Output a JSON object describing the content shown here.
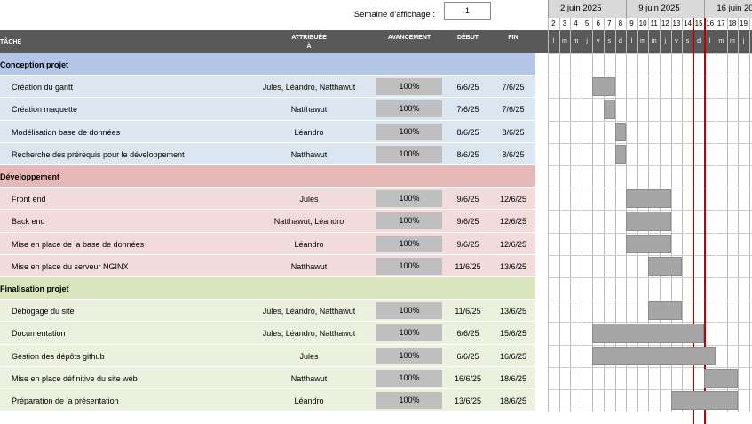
{
  "header": {
    "week_label": "Semaine d’affichage :",
    "week_value": "1"
  },
  "timeline": {
    "weeks": [
      "2 juin 2025",
      "9 juin 2025",
      "16 juin 20"
    ],
    "days": [
      "2",
      "3",
      "4",
      "5",
      "6",
      "7",
      "8",
      "9",
      "10",
      "11",
      "12",
      "13",
      "14",
      "15",
      "16",
      "17",
      "18",
      "19"
    ],
    "weekdays": [
      "l",
      "m",
      "m",
      "j",
      "v",
      "s",
      "d",
      "l",
      "m",
      "m",
      "j",
      "v",
      "s",
      "d",
      "l",
      "m",
      "m",
      "j"
    ]
  },
  "table": {
    "columns": [
      "TÂCHE",
      "ATTRIBUÉE\nÀ",
      "AVANCEMENT",
      "DÉBUT",
      "FIN"
    ],
    "groups": [
      {
        "name": "Conception projet",
        "tasks": [
          {
            "task": "Création du gantt",
            "assigned": "Jules, Léandro, Natthawut",
            "progress": "100%",
            "start": "6/6/25",
            "end": "7/6/25"
          },
          {
            "task": "Création maquette",
            "assigned": "Natthawut",
            "progress": "100%",
            "start": "7/6/25",
            "end": "7/6/25"
          },
          {
            "task": "Modélisation base de données",
            "assigned": "Léandro",
            "progress": "100%",
            "start": "8/6/25",
            "end": "8/6/25"
          },
          {
            "task": "Recherche des prérequis pour le développement",
            "assigned": "Natthawut",
            "progress": "100%",
            "start": "8/6/25",
            "end": "8/6/25"
          }
        ]
      },
      {
        "name": "Développement",
        "tasks": [
          {
            "task": "Front end",
            "assigned": "Jules",
            "progress": "100%",
            "start": "9/6/25",
            "end": "12/6/25"
          },
          {
            "task": "Back end",
            "assigned": "Natthawut, Léandro",
            "progress": "100%",
            "start": "9/6/25",
            "end": "12/6/25"
          },
          {
            "task": "Mise en place de la base de données",
            "assigned": "Léandro",
            "progress": "100%",
            "start": "9/6/25",
            "end": "12/6/25"
          },
          {
            "task": "Mise en place du serveur NGINX",
            "assigned": "Natthawut",
            "progress": "100%",
            "start": "11/6/25",
            "end": "13/6/25"
          }
        ]
      },
      {
        "name": "Finalisation projet",
        "tasks": [
          {
            "task": "Débogage du site",
            "assigned": "Jules, Léandro, Natthawut",
            "progress": "100%",
            "start": "11/6/25",
            "end": "13/6/25"
          },
          {
            "task": "Documentation",
            "assigned": "Jules, Léandro, Natthawut",
            "progress": "100%",
            "start": "6/6/25",
            "end": "15/6/25"
          },
          {
            "task": "Gestion des dépôts github",
            "assigned": "Jules",
            "progress": "100%",
            "start": "6/6/25",
            "end": "16/6/25"
          },
          {
            "task": "Mise en place définitive du site web",
            "assigned": "Natthawut",
            "progress": "100%",
            "start": "16/6/25",
            "end": "18/6/25"
          },
          {
            "task": "Préparation de la présentation",
            "assigned": "Léandro",
            "progress": "100%",
            "start": "13/6/25",
            "end": "18/6/25"
          }
        ]
      }
    ]
  }
}
